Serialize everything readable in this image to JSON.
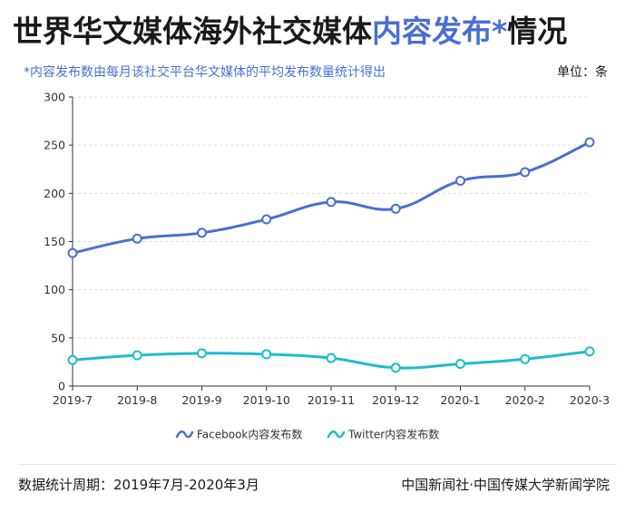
{
  "header": {
    "title_main": "世界华文媒体海外社交媒体",
    "title_accent": "内容发布*",
    "title_tail": "情况",
    "note": "*内容发布数由每月该社交平台华文媒体的平均发布数量统计得出",
    "unit": "单位：条"
  },
  "footer": {
    "period": "数据统计周期：2019年7月-2020年3月",
    "source": "中国新闻社·中国传媒大学新闻学院"
  },
  "colors": {
    "accent": "#4a6fd1",
    "facebook": "#4a6fd1",
    "twitter": "#1fbccb"
  },
  "chart_data": {
    "type": "line",
    "categories": [
      "2019-7",
      "2019-8",
      "2019-9",
      "2019-10",
      "2019-11",
      "2019-12",
      "2020-1",
      "2020-2",
      "2020-3"
    ],
    "series": [
      {
        "name": "Facebook内容发布数",
        "values": [
          138,
          153,
          159,
          173,
          191,
          184,
          213,
          222,
          253
        ],
        "color": "#4a6fd1"
      },
      {
        "name": "Twitter内容发布数",
        "values": [
          27,
          32,
          34,
          33,
          29,
          19,
          23,
          28,
          36
        ],
        "color": "#1fbccb"
      }
    ],
    "yticks": [
      0,
      50,
      100,
      150,
      200,
      250,
      300
    ],
    "ylim": [
      0,
      300
    ],
    "grid": true,
    "legend": "bottom-center",
    "smooth": true
  }
}
